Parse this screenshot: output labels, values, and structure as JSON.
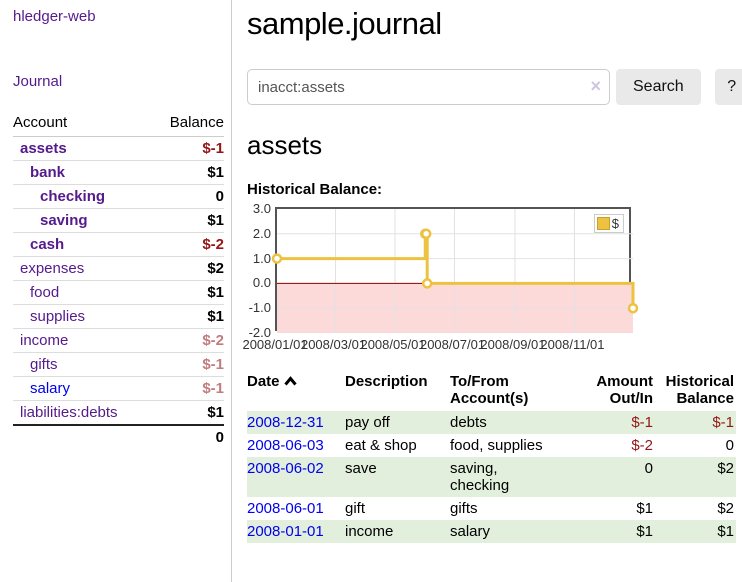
{
  "sidebar": {
    "brand": "hledger-web",
    "journal_link": "Journal",
    "accounts_table": {
      "headers": {
        "account": "Account",
        "balance": "Balance"
      },
      "rows": [
        {
          "name": "assets",
          "balance": "$-1",
          "indent": 1,
          "bold": true,
          "negative": "strong"
        },
        {
          "name": "bank",
          "balance": "$1",
          "indent": 2,
          "bold": true,
          "negative": "none"
        },
        {
          "name": "checking",
          "balance": "0",
          "indent": 3,
          "bold": true,
          "negative": "none"
        },
        {
          "name": "saving",
          "balance": "$1",
          "indent": 3,
          "bold": true,
          "negative": "none"
        },
        {
          "name": "cash",
          "balance": "$-2",
          "indent": 2,
          "bold": true,
          "negative": "strong"
        },
        {
          "name": "expenses",
          "balance": "$2",
          "indent": 1,
          "bold": false,
          "negative": "none"
        },
        {
          "name": "food",
          "balance": "$1",
          "indent": 2,
          "bold": false,
          "negative": "none"
        },
        {
          "name": "supplies",
          "balance": "$1",
          "indent": 2,
          "bold": false,
          "negative": "none"
        },
        {
          "name": "income",
          "balance": "$-2",
          "indent": 1,
          "bold": false,
          "negative": "soft"
        },
        {
          "name": "gifts",
          "balance": "$-1",
          "indent": 2,
          "bold": false,
          "negative": "soft"
        },
        {
          "name": "salary",
          "balance": "$-1",
          "indent": 2,
          "bold": false,
          "negative": "soft",
          "link_color": "blue"
        },
        {
          "name": "liabilities:debts",
          "balance": "$1",
          "indent": 1,
          "bold": false,
          "negative": "none"
        }
      ],
      "total": "0"
    }
  },
  "header": {
    "title": "sample.journal"
  },
  "search": {
    "value": "inacct:assets",
    "clear_icon": "×",
    "button_label": "Search",
    "help_label": "?"
  },
  "account_page": {
    "heading": "assets",
    "chart_title": "Historical Balance:"
  },
  "chart_data": {
    "type": "line",
    "title": "Historical Balance",
    "series": [
      {
        "name": "$",
        "color": "#edc240",
        "step": true,
        "points": [
          {
            "date": "2008-01-01",
            "value": 1
          },
          {
            "date": "2008-06-01",
            "value": 2
          },
          {
            "date": "2008-06-02",
            "value": 2
          },
          {
            "date": "2008-06-03",
            "value": 0
          },
          {
            "date": "2008-12-31",
            "value": -1
          }
        ]
      }
    ],
    "x_range": [
      "2008-01-01",
      "2008-12-31"
    ],
    "ylim": [
      -2,
      3
    ],
    "y_ticks": [
      3.0,
      2.0,
      1.0,
      0.0,
      -1.0,
      -2.0
    ],
    "x_ticks": [
      "2008/01/01",
      "2008/03/01",
      "2008/05/01",
      "2008/07/01",
      "2008/09/01",
      "2008/11/01"
    ],
    "legend": {
      "label": "$",
      "position": "top-right"
    },
    "grid": true,
    "gridline_color": "#e2e2e2",
    "border_color": "#545454",
    "zero_line_color": "#8b0000",
    "negative_region_color": "#fcdada"
  },
  "register_table": {
    "headers": {
      "date": "Date",
      "description": "Description",
      "accounts": [
        "To/From",
        "Account(s)"
      ],
      "amount": [
        "Amount",
        "Out/In"
      ],
      "balance": [
        "Historical",
        "Balance"
      ]
    },
    "rows": [
      {
        "date": "2008-12-31",
        "description": "pay off",
        "accounts": [
          "debts"
        ],
        "amount": "$-1",
        "amount_neg": true,
        "balance": "$-1",
        "balance_neg": true
      },
      {
        "date": "2008-06-03",
        "description": "eat & shop",
        "accounts": [
          "food, supplies"
        ],
        "amount": "$-2",
        "amount_neg": true,
        "balance": "0",
        "balance_neg": false
      },
      {
        "date": "2008-06-02",
        "description": "save",
        "accounts": [
          "saving,",
          "checking"
        ],
        "amount": "0",
        "amount_neg": false,
        "balance": "$2",
        "balance_neg": false
      },
      {
        "date": "2008-06-01",
        "description": "gift",
        "accounts": [
          "gifts"
        ],
        "amount": "$1",
        "amount_neg": false,
        "balance": "$2",
        "balance_neg": false
      },
      {
        "date": "2008-01-01",
        "description": "income",
        "accounts": [
          "salary"
        ],
        "amount": "$1",
        "amount_neg": false,
        "balance": "$1",
        "balance_neg": false
      }
    ]
  }
}
